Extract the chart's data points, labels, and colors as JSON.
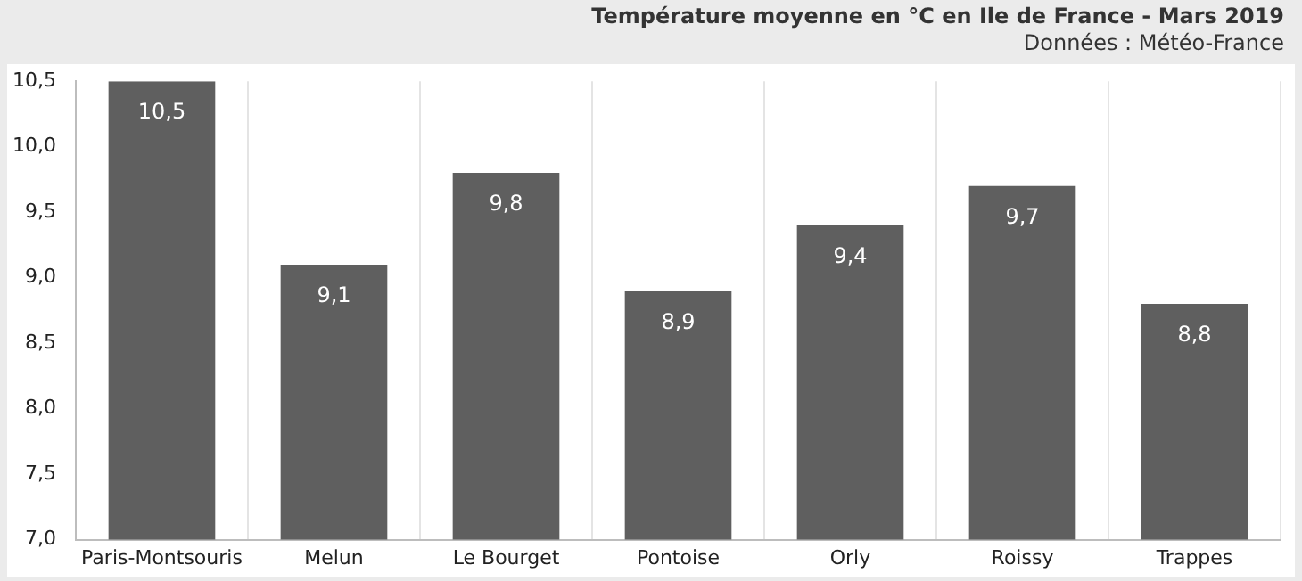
{
  "chart_data": {
    "type": "bar",
    "title": "Température moyenne en °C en Ile de France - Mars 2019",
    "subtitle": "Données : Météo-France",
    "categories": [
      "Paris-Montsouris",
      "Melun",
      "Le Bourget",
      "Pontoise",
      "Orly",
      "Roissy",
      "Trappes"
    ],
    "values": [
      10.5,
      9.1,
      9.8,
      8.9,
      9.4,
      9.7,
      8.8
    ],
    "value_labels": [
      "10,5",
      "9,1",
      "9,8",
      "8,9",
      "9,4",
      "9,7",
      "8,8"
    ],
    "color": "#5f5f5f",
    "ylim": [
      7,
      10.5
    ],
    "yticks": [
      {
        "value": 7,
        "label": "7,0"
      },
      {
        "value": 7.5,
        "label": "7,5"
      },
      {
        "value": 8,
        "label": "8,0"
      },
      {
        "value": 8.5,
        "label": "8,5"
      },
      {
        "value": 9,
        "label": "9,0"
      },
      {
        "value": 9.5,
        "label": "9,5"
      },
      {
        "value": 10,
        "label": "10,0"
      },
      {
        "value": 10.5,
        "label": "10,5"
      }
    ],
    "grid": "x",
    "legend": false
  }
}
